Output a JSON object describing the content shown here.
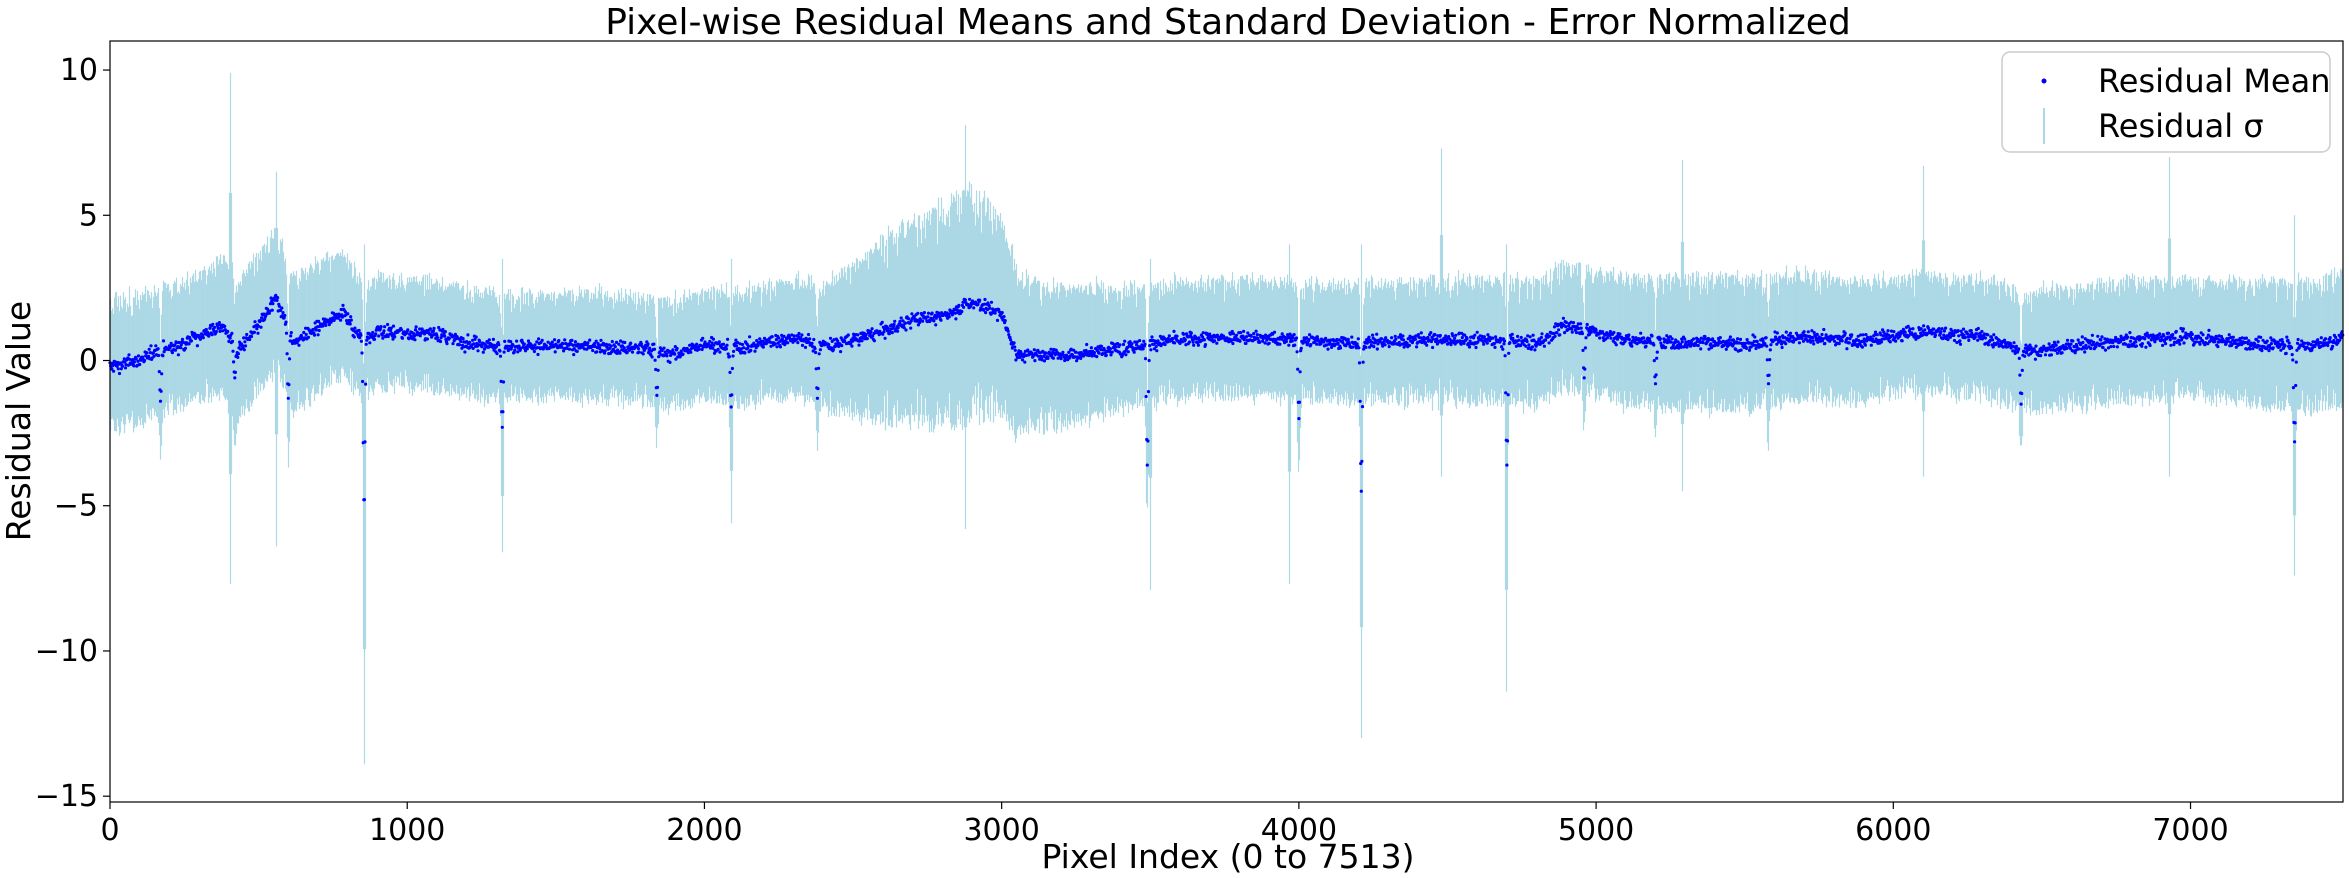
{
  "chart_data": {
    "type": "scatter",
    "title": "Pixel-wise Residual Means and Standard Deviation - Error Normalized",
    "xlabel": "Pixel Index (0 to 7513)",
    "ylabel": "Residual Value",
    "xlim": [
      0,
      7513
    ],
    "ylim": [
      -15.2,
      11.0
    ],
    "xticks": [
      0,
      1000,
      2000,
      3000,
      4000,
      5000,
      6000,
      7000
    ],
    "xtick_labels": [
      "0",
      "1000",
      "2000",
      "3000",
      "4000",
      "5000",
      "6000",
      "7000"
    ],
    "yticks": [
      10,
      5,
      0,
      -5,
      -10,
      -15
    ],
    "ytick_labels": [
      "10",
      "5",
      "0",
      "−5",
      "−10",
      "−15"
    ],
    "grid": false,
    "legend_position": "top-right",
    "n_points": 7514,
    "series": [
      {
        "name": "Residual Mean",
        "kind": "points",
        "color": "#0000ff",
        "mean_profile": [
          [
            0,
            -0.2
          ],
          [
            100,
            0.0
          ],
          [
            150,
            0.3
          ],
          [
            250,
            0.6
          ],
          [
            330,
            1.0
          ],
          [
            380,
            1.2
          ],
          [
            430,
            0.3
          ],
          [
            500,
            1.2
          ],
          [
            560,
            2.1
          ],
          [
            620,
            0.6
          ],
          [
            700,
            1.1
          ],
          [
            780,
            1.7
          ],
          [
            850,
            0.7
          ],
          [
            900,
            1.0
          ],
          [
            1100,
            0.9
          ],
          [
            1200,
            0.6
          ],
          [
            1300,
            0.5
          ],
          [
            1400,
            0.5
          ],
          [
            1600,
            0.5
          ],
          [
            1800,
            0.4
          ],
          [
            1900,
            0.2
          ],
          [
            2000,
            0.6
          ],
          [
            2100,
            0.4
          ],
          [
            2200,
            0.6
          ],
          [
            2300,
            0.8
          ],
          [
            2400,
            0.5
          ],
          [
            2500,
            0.7
          ],
          [
            2600,
            1.0
          ],
          [
            2700,
            1.4
          ],
          [
            2800,
            1.5
          ],
          [
            2900,
            2.0
          ],
          [
            3000,
            1.6
          ],
          [
            3050,
            0.2
          ],
          [
            3200,
            0.2
          ],
          [
            3400,
            0.4
          ],
          [
            3500,
            0.6
          ],
          [
            3600,
            0.7
          ],
          [
            3800,
            0.8
          ],
          [
            4000,
            0.7
          ],
          [
            4200,
            0.6
          ],
          [
            4400,
            0.7
          ],
          [
            4600,
            0.7
          ],
          [
            4800,
            0.6
          ],
          [
            4900,
            1.2
          ],
          [
            5000,
            1.0
          ],
          [
            5100,
            0.7
          ],
          [
            5300,
            0.6
          ],
          [
            5400,
            0.6
          ],
          [
            5500,
            0.6
          ],
          [
            5700,
            0.8
          ],
          [
            5900,
            0.7
          ],
          [
            6100,
            1.0
          ],
          [
            6300,
            0.8
          ],
          [
            6450,
            0.3
          ],
          [
            6600,
            0.5
          ],
          [
            6800,
            0.7
          ],
          [
            7000,
            0.8
          ],
          [
            7200,
            0.6
          ],
          [
            7400,
            0.5
          ],
          [
            7513,
            0.8
          ]
        ],
        "dips": [
          [
            170,
            -1.4
          ],
          [
            420,
            -0.6
          ],
          [
            600,
            -1.3
          ],
          [
            855,
            -5.1
          ],
          [
            1320,
            -2.3
          ],
          [
            1840,
            -1.2
          ],
          [
            2090,
            -1.6
          ],
          [
            2380,
            -1.3
          ],
          [
            3490,
            -3.6
          ],
          [
            4000,
            -2.0
          ],
          [
            4210,
            -4.5
          ],
          [
            4700,
            -3.6
          ],
          [
            4960,
            -0.6
          ],
          [
            5200,
            -0.8
          ],
          [
            5580,
            -0.8
          ],
          [
            6430,
            -1.5
          ],
          [
            7350,
            -2.8
          ]
        ]
      },
      {
        "name": "Residual σ",
        "kind": "errorbar",
        "color": "#add8e6",
        "sigma_profile": [
          [
            0,
            2.4
          ],
          [
            300,
            2.3
          ],
          [
            400,
            2.6
          ],
          [
            700,
            2.4
          ],
          [
            900,
            2.0
          ],
          [
            1500,
            1.9
          ],
          [
            2000,
            2.0
          ],
          [
            2400,
            2.2
          ],
          [
            2600,
            3.3
          ],
          [
            2750,
            3.8
          ],
          [
            2900,
            4.3
          ],
          [
            3000,
            3.5
          ],
          [
            3100,
            2.7
          ],
          [
            3500,
            2.1
          ],
          [
            4000,
            2.1
          ],
          [
            4500,
            2.2
          ],
          [
            5000,
            2.3
          ],
          [
            5500,
            2.4
          ],
          [
            6000,
            2.1
          ],
          [
            6500,
            2.2
          ],
          [
            7000,
            2.1
          ],
          [
            7513,
            2.4
          ]
        ],
        "spikes": [
          [
            405,
            9.9,
            -7.7
          ],
          [
            560,
            6.5,
            -6.4
          ],
          [
            855,
            4.0,
            -13.9
          ],
          [
            1320,
            3.5,
            -6.6
          ],
          [
            2090,
            3.5,
            -5.6
          ],
          [
            2880,
            8.1,
            -5.8
          ],
          [
            3500,
            3.5,
            -7.9
          ],
          [
            3970,
            4.0,
            -7.7
          ],
          [
            4210,
            4.0,
            -13.0
          ],
          [
            4480,
            7.3,
            -4.0
          ],
          [
            4700,
            4.0,
            -11.4
          ],
          [
            5290,
            6.9,
            -4.5
          ],
          [
            6100,
            6.7,
            -4.0
          ],
          [
            6930,
            7.0,
            -4.0
          ],
          [
            7350,
            5.0,
            -7.4
          ]
        ]
      }
    ]
  }
}
